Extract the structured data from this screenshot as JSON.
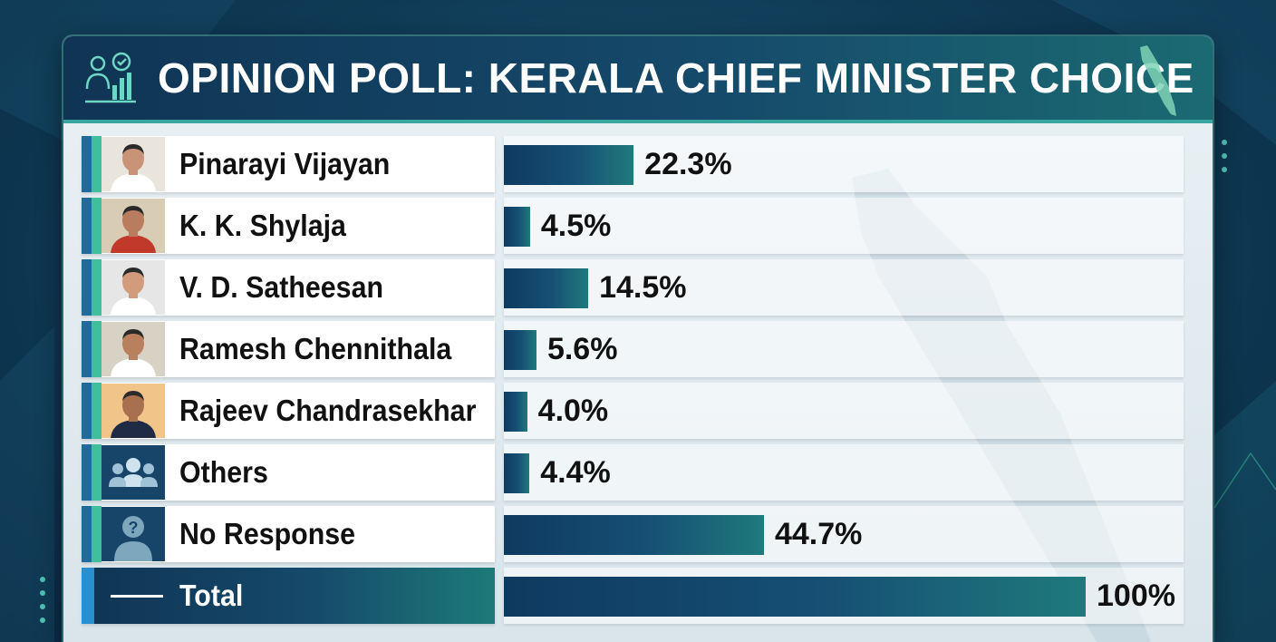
{
  "header": {
    "title": "OPINION POLL: KERALA CHIEF MINISTER CHOICE",
    "left_icon": "people-poll-chart-icon",
    "right_icon": "kerala-map-icon"
  },
  "colors": {
    "header_bg": "#15496a",
    "accent_teal": "#3fbf9b",
    "accent_blue": "#1f6b99",
    "bar_dark": "#0f3a60",
    "bar_teal": "#1f7a7c"
  },
  "rows": [
    {
      "name": "Pinarayi Vijayan",
      "value": "22.3%",
      "avatar": "person-photo"
    },
    {
      "name": "K. K. Shylaja",
      "value": "4.5%",
      "avatar": "person-photo"
    },
    {
      "name": "V. D. Satheesan",
      "value": "14.5%",
      "avatar": "person-photo"
    },
    {
      "name": "Ramesh Chennithala",
      "value": "5.6%",
      "avatar": "person-photo"
    },
    {
      "name": "Rajeev Chandrasekhar",
      "value": "4.0%",
      "avatar": "person-photo"
    },
    {
      "name": "Others",
      "value": "4.4%",
      "avatar": "group-icon"
    },
    {
      "name": "No Response",
      "value": "44.7%",
      "avatar": "question-person-icon"
    },
    {
      "name": "Total",
      "value": "100%",
      "avatar": "dash-line"
    }
  ],
  "chart_data": {
    "type": "bar",
    "orientation": "horizontal",
    "title": "OPINION POLL: KERALA CHIEF MINISTER CHOICE",
    "categories": [
      "Pinarayi Vijayan",
      "K. K. Shylaja",
      "V. D. Satheesan",
      "Ramesh Chennithala",
      "Rajeev Chandrasekhar",
      "Others",
      "No Response",
      "Total"
    ],
    "values": [
      22.3,
      4.5,
      14.5,
      5.6,
      4.0,
      4.4,
      44.7,
      100
    ],
    "data_labels": [
      "22.3%",
      "4.5%",
      "14.5%",
      "5.6%",
      "4.0%",
      "4.4%",
      "44.7%",
      "100%"
    ],
    "xlim": [
      0,
      100
    ],
    "grid": false,
    "legend": "none"
  }
}
